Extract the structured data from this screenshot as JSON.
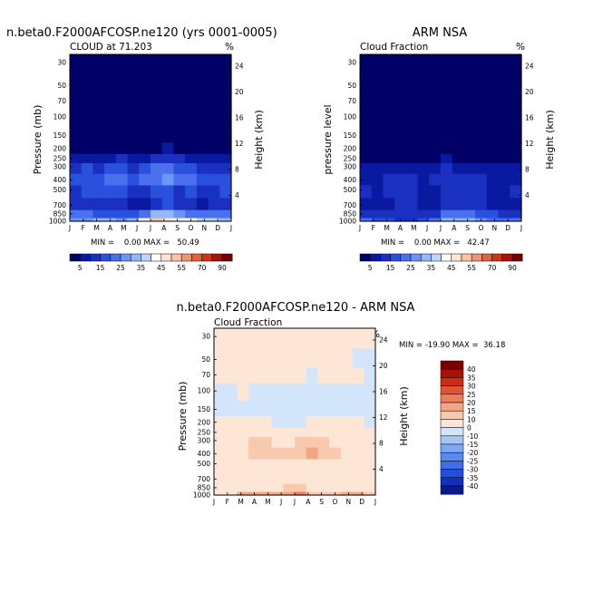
{
  "chart_data": [
    {
      "type": "heatmap",
      "title": "n.beta0.F2000AFCOSP.ne120 (yrs 0001-0005)",
      "subtitle": "CLOUD at 71.203",
      "units": "%",
      "ylabel": "Pressure (mb)",
      "ylabel_right": "Height (km)",
      "xlabels": [
        "J",
        "F",
        "M",
        "A",
        "M",
        "J",
        "J",
        "A",
        "S",
        "O",
        "N",
        "D",
        "J"
      ],
      "yticks": [
        "30",
        "50",
        "70",
        "100",
        "150",
        "200",
        "250",
        "300",
        "400",
        "500",
        "700",
        "850",
        "1000"
      ],
      "height_ticks": [
        "24",
        "20",
        "16",
        "12",
        "8",
        "4"
      ],
      "stats": "MIN =    0.00 MAX =   50.49",
      "colorbar": [
        "5",
        "15",
        "25",
        "35",
        "45",
        "55",
        "70",
        "90"
      ],
      "ylim": [
        30,
        1000
      ],
      "level_rows": [
        "1000",
        "850",
        "700",
        "500",
        "400",
        "300",
        "250",
        "200",
        "150",
        "100",
        "70",
        "50",
        "30"
      ],
      "values": [
        [
          27,
          26,
          30,
          30,
          29,
          32,
          40,
          50,
          47,
          43,
          40,
          37,
          38,
          34
        ],
        [
          20,
          20,
          18,
          18,
          17,
          18,
          24,
          30,
          30,
          27,
          24,
          22,
          20,
          20
        ],
        [
          12,
          11,
          10,
          10,
          12,
          8,
          9,
          14,
          15,
          12,
          10,
          9,
          10,
          12
        ],
        [
          14,
          17,
          16,
          18,
          17,
          14,
          13,
          16,
          15,
          14,
          15,
          14,
          14,
          16
        ],
        [
          16,
          18,
          17,
          22,
          21,
          19,
          20,
          24,
          28,
          24,
          21,
          18,
          16,
          17
        ],
        [
          13,
          15,
          14,
          17,
          17,
          14,
          16,
          20,
          20,
          19,
          16,
          12,
          11,
          13
        ],
        [
          7,
          8,
          8,
          8,
          11,
          8,
          8,
          12,
          12,
          11,
          9,
          8,
          7,
          6
        ],
        [
          1,
          2,
          2,
          1,
          2,
          2,
          3,
          4,
          5,
          4,
          3,
          3,
          2,
          1
        ],
        [
          0,
          0,
          0,
          0,
          0,
          0,
          0,
          0,
          0,
          0,
          0,
          0,
          0,
          0
        ],
        [
          0,
          0,
          0,
          0,
          0,
          0,
          0,
          0,
          0,
          0,
          0,
          0,
          0,
          0
        ],
        [
          0,
          0,
          0,
          0,
          0,
          0,
          0,
          0,
          0,
          0,
          0,
          0,
          0,
          0
        ],
        [
          0,
          0,
          0,
          0,
          0,
          0,
          0,
          0,
          0,
          0,
          0,
          0,
          0,
          0
        ],
        [
          0,
          0,
          0,
          0,
          0,
          0,
          0,
          0,
          0,
          0,
          0,
          0,
          0,
          0
        ]
      ]
    },
    {
      "type": "heatmap",
      "title": "ARM NSA",
      "subtitle": "Cloud Fraction",
      "units": "%",
      "ylabel": "pressure level",
      "ylabel_right": "Height (km)",
      "xlabels": [
        "J",
        "F",
        "M",
        "A",
        "M",
        "J",
        "J",
        "A",
        "S",
        "O",
        "N",
        "D",
        "J"
      ],
      "yticks": [
        "30",
        "50",
        "70",
        "100",
        "150",
        "200",
        "250",
        "300",
        "400",
        "500",
        "700",
        "850",
        "1000"
      ],
      "height_ticks": [
        "24",
        "20",
        "16",
        "12",
        "8",
        "4"
      ],
      "stats": "MIN =    0.00 MAX =   42.47",
      "colorbar": [
        "5",
        "15",
        "25",
        "35",
        "45",
        "55",
        "70",
        "90"
      ],
      "ylim": [
        30,
        1000
      ],
      "level_rows": [
        "1000",
        "850",
        "700",
        "500",
        "400",
        "300",
        "250",
        "200",
        "150",
        "100",
        "70",
        "50",
        "30"
      ],
      "values": [
        [
          20,
          18,
          15,
          12,
          12,
          15,
          24,
          30,
          34,
          30,
          28,
          22,
          20,
          22
        ],
        [
          14,
          13,
          12,
          12,
          11,
          10,
          14,
          20,
          24,
          22,
          18,
          15,
          13,
          14
        ],
        [
          8,
          9,
          9,
          10,
          10,
          8,
          8,
          10,
          12,
          11,
          10,
          9,
          8,
          8
        ],
        [
          10,
          9,
          10,
          12,
          11,
          9,
          9,
          11,
          11,
          10,
          10,
          9,
          9,
          10
        ],
        [
          9,
          9,
          11,
          10,
          10,
          9,
          10,
          12,
          11,
          11,
          10,
          9,
          8,
          9
        ],
        [
          6,
          6,
          7,
          5,
          7,
          8,
          8,
          10,
          9,
          9,
          8,
          7,
          6,
          6
        ],
        [
          2,
          2,
          2,
          1,
          2,
          3,
          4,
          5,
          4,
          4,
          3,
          2,
          2,
          2
        ],
        [
          0,
          0,
          0,
          0,
          0,
          0,
          0,
          1,
          0,
          0,
          0,
          0,
          0,
          0
        ],
        [
          0,
          0,
          0,
          0,
          0,
          0,
          0,
          0,
          0,
          0,
          0,
          0,
          0,
          0
        ],
        [
          0,
          0,
          0,
          0,
          0,
          0,
          0,
          0,
          0,
          0,
          0,
          0,
          0,
          0
        ],
        [
          0,
          0,
          0,
          0,
          0,
          0,
          0,
          0,
          0,
          0,
          0,
          0,
          0,
          0
        ],
        [
          0,
          0,
          0,
          0,
          0,
          0,
          0,
          0,
          0,
          0,
          0,
          0,
          0,
          0
        ],
        [
          0,
          0,
          0,
          0,
          0,
          0,
          0,
          0,
          0,
          0,
          0,
          0,
          0,
          0
        ]
      ]
    },
    {
      "type": "heatmap",
      "title": "n.beta0.F2000AFCOSP.ne120 - ARM NSA",
      "subtitle": "Cloud Fraction",
      "units": "%",
      "ylabel": "Pressure (mb)",
      "ylabel_right": "Height (km)",
      "xlabels": [
        "J",
        "F",
        "M",
        "A",
        "M",
        "J",
        "J",
        "A",
        "S",
        "O",
        "N",
        "D",
        "J"
      ],
      "yticks": [
        "30",
        "50",
        "70",
        "100",
        "150",
        "200",
        "250",
        "300",
        "400",
        "500",
        "700",
        "850",
        "1000"
      ],
      "height_ticks": [
        "24",
        "20",
        "16",
        "12",
        "8",
        "4"
      ],
      "stats": "MIN = -19.90 MAX =  36.18",
      "colorbar": [
        "40",
        "35",
        "30",
        "25",
        "20",
        "15",
        "10",
        "0",
        "-10",
        "-15",
        "-20",
        "-25",
        "-30",
        "-35",
        "-40"
      ],
      "ylim": [
        30,
        1000
      ],
      "level_rows": [
        "1000",
        "850",
        "700",
        "500",
        "400",
        "300",
        "250",
        "200",
        "150",
        "100",
        "70",
        "50",
        "30"
      ],
      "values": [
        [
          7,
          8,
          15,
          18,
          17,
          17,
          16,
          20,
          13,
          13,
          12,
          15,
          18,
          12
        ],
        [
          6,
          7,
          6,
          6,
          6,
          8,
          10,
          10,
          6,
          5,
          6,
          7,
          7,
          6
        ],
        [
          4,
          2,
          1,
          0,
          2,
          0,
          1,
          4,
          3,
          1,
          0,
          0,
          2,
          4
        ],
        [
          4,
          8,
          6,
          6,
          6,
          5,
          4,
          5,
          4,
          4,
          5,
          5,
          5,
          6
        ],
        [
          7,
          9,
          6,
          12,
          11,
          10,
          10,
          12,
          17,
          13,
          11,
          9,
          8,
          8
        ],
        [
          7,
          9,
          7,
          12,
          10,
          6,
          8,
          10,
          11,
          10,
          8,
          5,
          5,
          7
        ],
        [
          5,
          6,
          6,
          7,
          9,
          5,
          4,
          7,
          8,
          7,
          6,
          6,
          5,
          4
        ],
        [
          1,
          2,
          2,
          1,
          2,
          -1,
          -1,
          -1,
          1,
          0,
          0,
          1,
          0,
          -1
        ],
        [
          -2,
          -2,
          -2,
          -2,
          -3,
          -3,
          -3,
          -3,
          -3,
          -3,
          -2,
          -2,
          -2,
          -2
        ],
        [
          -1,
          -1,
          0,
          -2,
          -2,
          -2,
          -2,
          -2,
          -3,
          -2,
          -2,
          -2,
          -2,
          -1
        ],
        [
          1,
          1,
          1,
          1,
          1,
          1,
          1,
          1,
          -4,
          1,
          1,
          1,
          0,
          -1
        ],
        [
          1,
          1,
          1,
          1,
          1,
          1,
          1,
          1,
          1,
          1,
          1,
          1,
          -3,
          -3
        ],
        [
          1,
          1,
          1,
          1,
          1,
          1,
          1,
          1,
          1,
          1,
          1,
          1,
          1,
          1
        ]
      ]
    }
  ]
}
